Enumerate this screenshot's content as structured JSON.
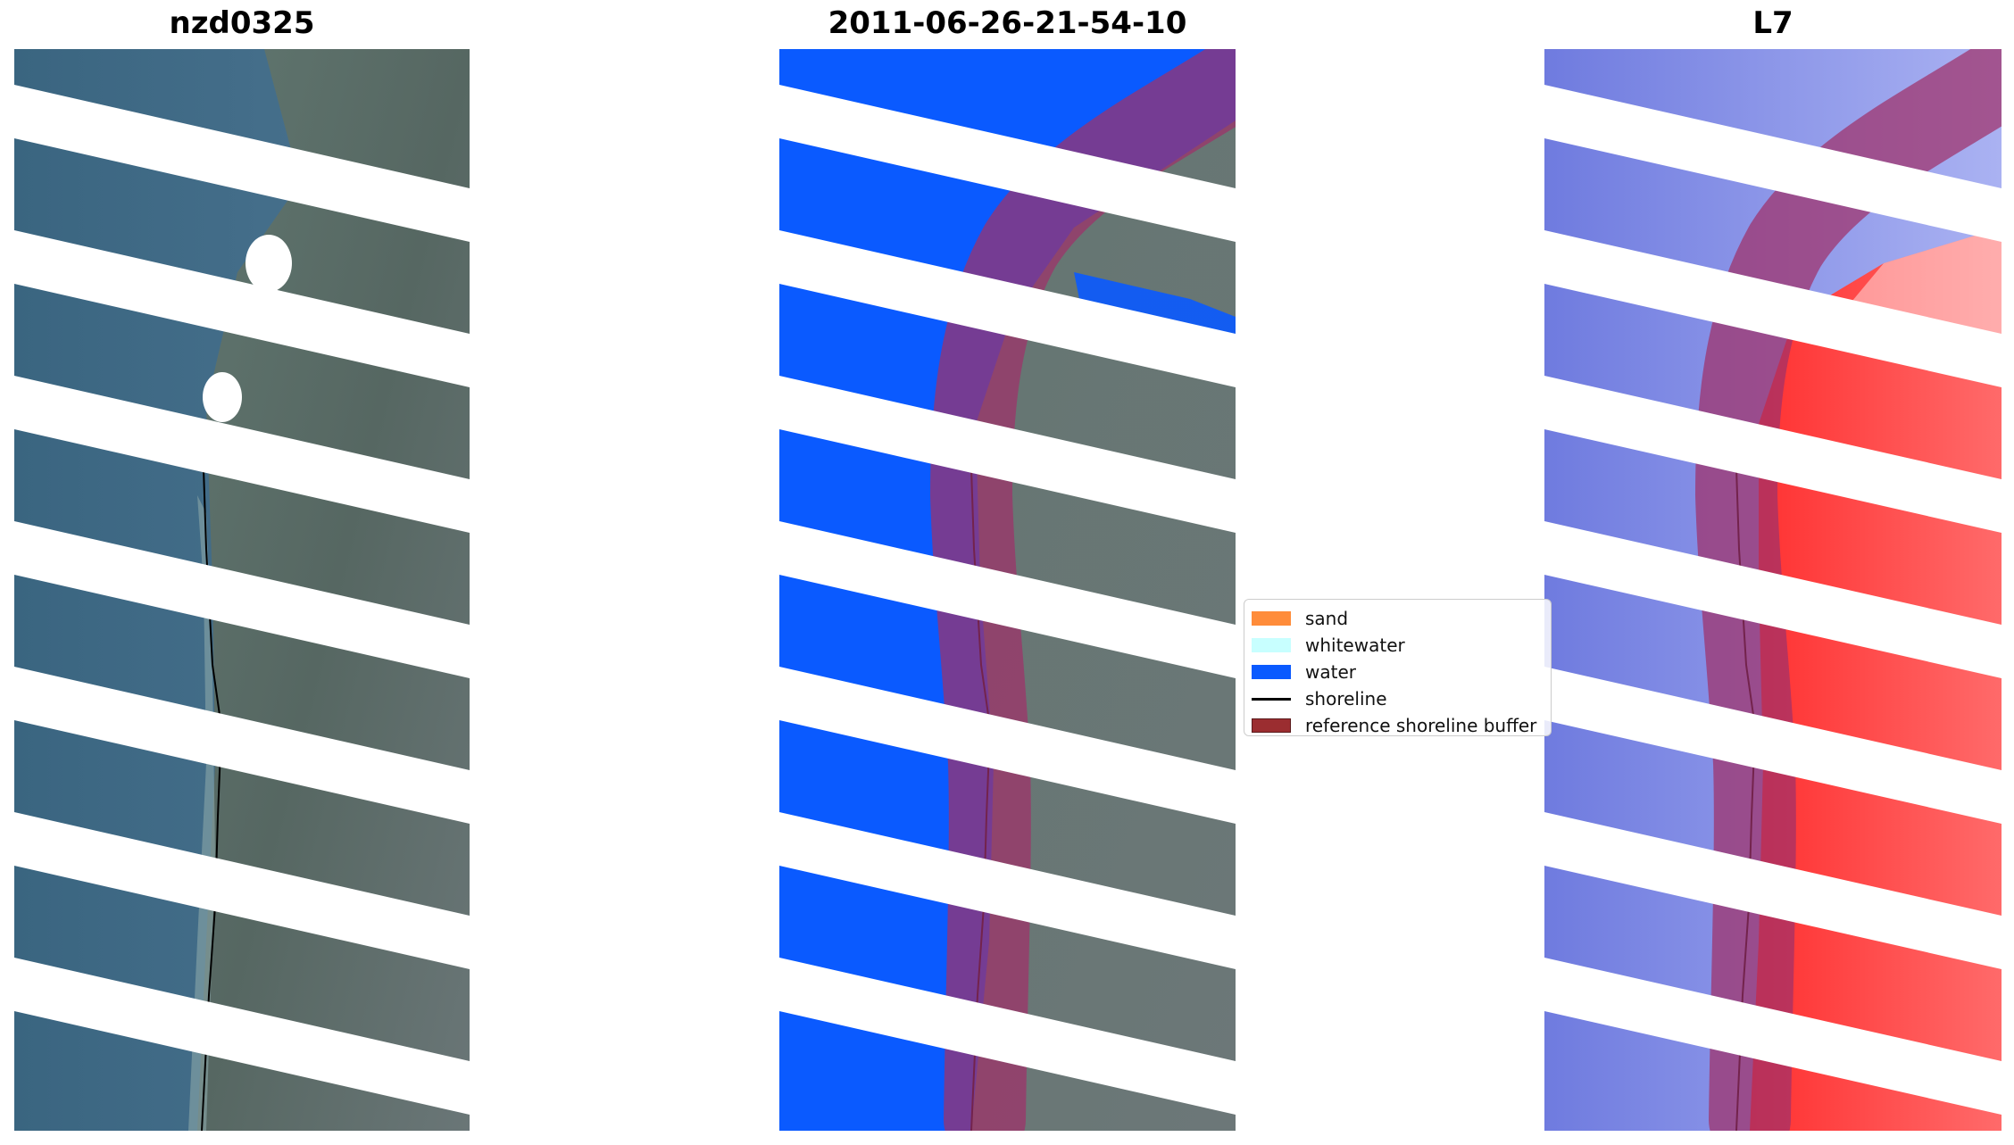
{
  "panels": [
    {
      "title": "nzd0325"
    },
    {
      "title": "2011-06-26-21-54-10"
    },
    {
      "title": "L7"
    }
  ],
  "legend": {
    "items": [
      {
        "label": "sand",
        "color": "#ff8c3a",
        "kind": "patch"
      },
      {
        "label": "whitewater",
        "color": "#c8ffff",
        "kind": "patch"
      },
      {
        "label": "water",
        "color": "#0a5aff",
        "kind": "patch"
      },
      {
        "label": "shoreline",
        "color": "#000000",
        "kind": "line"
      },
      {
        "label": "reference shoreline buffer",
        "color": "#9b2d30",
        "kind": "patch"
      }
    ]
  },
  "colors": {
    "ocean_rgb": "#3f6b86",
    "land_rgb": "#5f6f6c",
    "class_water": "#0a5aff",
    "buffer_overlay": "#a0306a",
    "index_water": "#7a86e6",
    "index_land": "#ff1a1a"
  }
}
